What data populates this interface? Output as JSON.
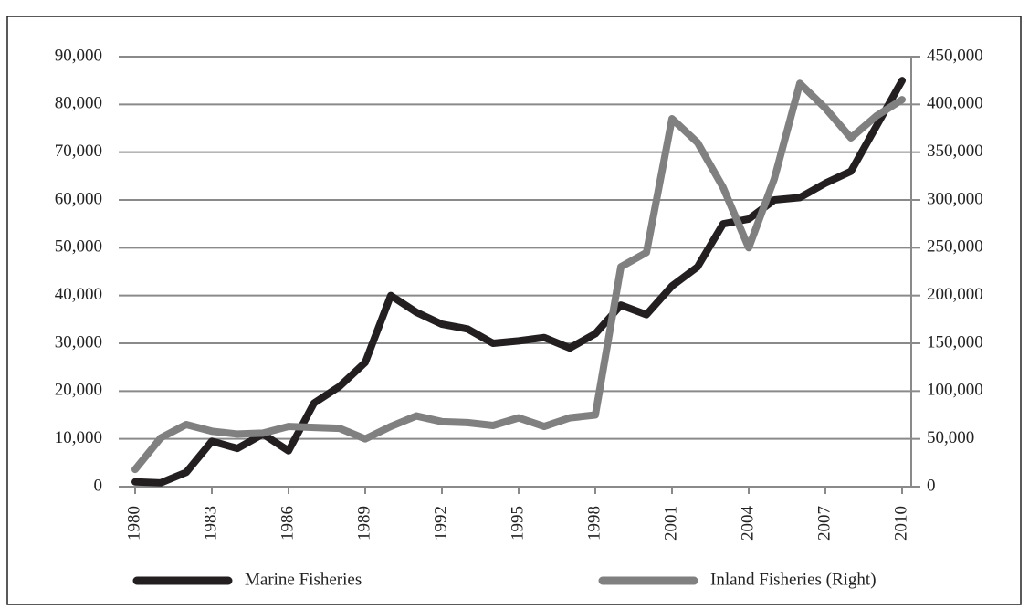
{
  "chart_data": {
    "type": "line",
    "x": [
      1980,
      1981,
      1982,
      1983,
      1984,
      1985,
      1986,
      1987,
      1988,
      1989,
      1990,
      1991,
      1992,
      1993,
      1994,
      1995,
      1996,
      1997,
      1998,
      1999,
      2000,
      2001,
      2002,
      2003,
      2004,
      2005,
      2006,
      2007,
      2008,
      2009,
      2010
    ],
    "xlim": [
      1980,
      2010
    ],
    "xticks": [
      1980,
      1983,
      1986,
      1989,
      1992,
      1995,
      1998,
      2001,
      2004,
      2007,
      2010
    ],
    "ylim": [
      0,
      90000
    ],
    "yticks": [
      0,
      {
        "value": 10000,
        "label": "10,000"
      },
      {
        "value": 20000,
        "label": "20,000"
      },
      {
        "value": 30000,
        "label": "30,000"
      },
      {
        "value": 40000,
        "label": "40,000"
      },
      {
        "value": 50000,
        "label": "50,000"
      },
      {
        "value": 60000,
        "label": "60,000"
      },
      {
        "value": 70000,
        "label": "70,000"
      },
      {
        "value": 80000,
        "label": "80,000"
      },
      {
        "value": 90000,
        "label": "90,000"
      }
    ],
    "y2lim": [
      0,
      450000
    ],
    "y2ticks": [
      0,
      {
        "value": 50000,
        "label": "50,000"
      },
      {
        "value": 100000,
        "label": "100,000"
      },
      {
        "value": 150000,
        "label": "150,000"
      },
      {
        "value": 200000,
        "label": "200,000"
      },
      {
        "value": 250000,
        "label": "250,000"
      },
      {
        "value": 300000,
        "label": "300,000"
      },
      {
        "value": 350000,
        "label": "350,000"
      },
      {
        "value": 400000,
        "label": "400,000"
      },
      {
        "value": 450000,
        "label": "450,000"
      }
    ],
    "grid": true,
    "legend": "bottom",
    "series": [
      {
        "name": "Marine Fisheries",
        "color": "#231f20",
        "values": [
          1000,
          800,
          3000,
          9500,
          8000,
          11000,
          7500,
          17500,
          21000,
          26000,
          40000,
          36500,
          34000,
          33000,
          30000,
          30500,
          31200,
          29000,
          32000,
          38000,
          36000,
          42000,
          46000,
          55000,
          56000,
          60000,
          60500,
          63500,
          66000,
          75500,
          85000
        ]
      },
      {
        "name": "Inland Fisheries (Right)",
        "color": "#808080",
        "axis": "y2",
        "values": [
          18000,
          51000,
          65000,
          58000,
          55000,
          56000,
          63000,
          62000,
          61000,
          50000,
          63000,
          74000,
          68000,
          67000,
          64000,
          72000,
          63000,
          72000,
          75000,
          230000,
          245000,
          385000,
          360000,
          313000,
          250000,
          322000,
          422000,
          396000,
          365000,
          388000,
          405000
        ]
      }
    ]
  }
}
